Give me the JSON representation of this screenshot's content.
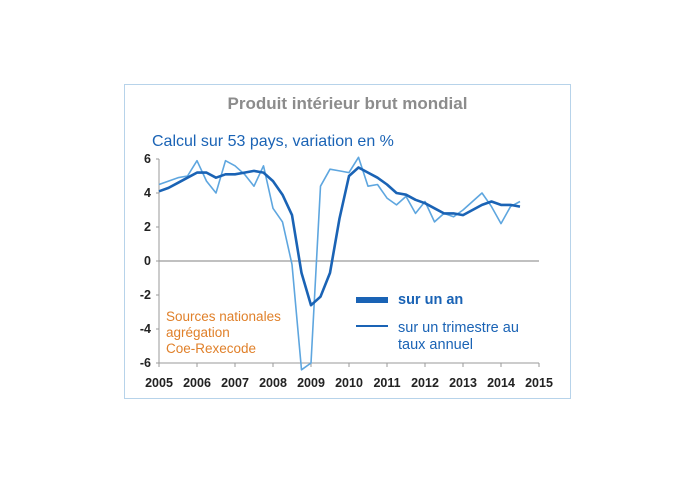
{
  "chart_data": {
    "type": "line",
    "title": "Produit intérieur brut mondial",
    "subtitle": "Calcul sur 53 pays, variation en %",
    "source_lines": [
      "Sources nationales",
      "agrégation",
      "Coe-Rexecode"
    ],
    "xlim": [
      2005,
      2015
    ],
    "ylim": [
      -6,
      6
    ],
    "x_ticks": [
      "2005",
      "2006",
      "2007",
      "2008",
      "2009",
      "2010",
      "2011",
      "2012",
      "2013",
      "2014",
      "2015"
    ],
    "y_ticks": [
      "6",
      "4",
      "2",
      "0",
      "-2",
      "-4",
      "-6"
    ],
    "legend": {
      "position": "bottom-right",
      "labels": [
        "sur un an",
        "sur un trimestre au taux annuel"
      ]
    },
    "series": [
      {
        "name": "sur un an",
        "color": "#1a63b5",
        "x": [
          2005.0,
          2005.25,
          2005.5,
          2005.75,
          2006.0,
          2006.25,
          2006.5,
          2006.75,
          2007.0,
          2007.25,
          2007.5,
          2007.75,
          2008.0,
          2008.25,
          2008.5,
          2008.75,
          2009.0,
          2009.25,
          2009.5,
          2009.75,
          2010.0,
          2010.25,
          2010.5,
          2010.75,
          2011.0,
          2011.25,
          2011.5,
          2011.75,
          2012.0,
          2012.25,
          2012.5,
          2012.75,
          2013.0,
          2013.25,
          2013.5,
          2013.75,
          2014.0,
          2014.25,
          2014.5
        ],
        "values": [
          4.1,
          4.3,
          4.6,
          4.9,
          5.2,
          5.2,
          4.9,
          5.1,
          5.1,
          5.2,
          5.3,
          5.2,
          4.7,
          3.9,
          2.7,
          -0.7,
          -2.6,
          -2.1,
          -0.7,
          2.5,
          5.0,
          5.5,
          5.2,
          4.9,
          4.5,
          4.0,
          3.9,
          3.6,
          3.4,
          3.1,
          2.8,
          2.8,
          2.7,
          3.0,
          3.3,
          3.5,
          3.3,
          3.3,
          3.2
        ]
      },
      {
        "name": "sur un trimestre au taux annuel",
        "color": "#5ea6df",
        "x": [
          2005.0,
          2005.25,
          2005.5,
          2005.75,
          2006.0,
          2006.25,
          2006.5,
          2006.75,
          2007.0,
          2007.25,
          2007.5,
          2007.75,
          2008.0,
          2008.25,
          2008.5,
          2008.75,
          2009.0,
          2009.25,
          2009.5,
          2009.75,
          2010.0,
          2010.25,
          2010.5,
          2010.75,
          2011.0,
          2011.25,
          2011.5,
          2011.75,
          2012.0,
          2012.25,
          2012.5,
          2012.75,
          2013.0,
          2013.25,
          2013.5,
          2013.75,
          2014.0,
          2014.25,
          2014.5
        ],
        "values": [
          4.5,
          4.7,
          4.9,
          5.0,
          5.9,
          4.7,
          4.0,
          5.9,
          5.6,
          5.1,
          4.4,
          5.6,
          3.1,
          2.3,
          -0.2,
          -6.4,
          -6.0,
          4.4,
          5.4,
          5.3,
          5.2,
          6.1,
          4.4,
          4.5,
          3.7,
          3.3,
          3.8,
          2.8,
          3.5,
          2.3,
          2.8,
          2.6,
          3.0,
          3.5,
          4.0,
          3.2,
          2.2,
          3.2,
          3.5
        ]
      }
    ]
  }
}
